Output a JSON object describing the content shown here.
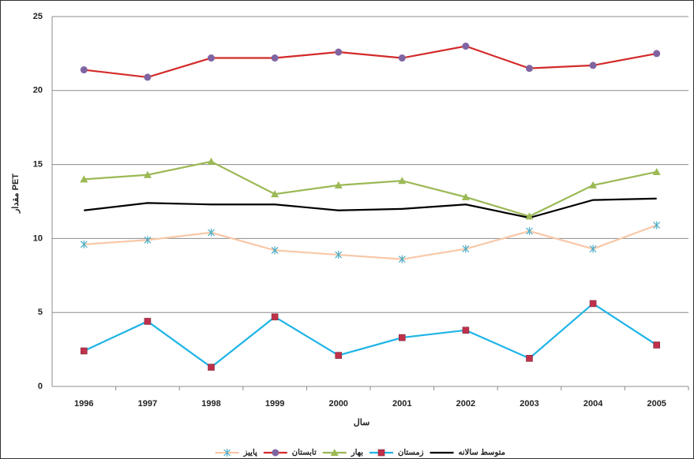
{
  "chart_data": {
    "type": "line",
    "ylabel": "مقدار PET",
    "xlabel": "سال",
    "categories": [
      "1996",
      "1997",
      "1998",
      "1999",
      "2000",
      "2001",
      "2002",
      "2003",
      "2004",
      "2005"
    ],
    "series": [
      {
        "name": "متوسط سالانه",
        "color": "#000000",
        "marker": "none",
        "marker_color": "#000000",
        "values": [
          11.9,
          12.4,
          12.3,
          12.3,
          11.9,
          12.0,
          12.3,
          11.4,
          12.6,
          12.7
        ]
      },
      {
        "name": "زمستان",
        "color": "#1eb4e6",
        "marker": "square",
        "marker_color": "#c0304a",
        "values": [
          2.4,
          4.4,
          1.3,
          4.7,
          2.1,
          3.3,
          3.8,
          1.9,
          5.6,
          2.8
        ]
      },
      {
        "name": "بهار",
        "color": "#9bb955",
        "marker": "triangle",
        "marker_color": "#9bb955",
        "values": [
          14.0,
          14.3,
          15.2,
          13.0,
          13.6,
          13.9,
          12.8,
          11.5,
          13.6,
          14.5
        ]
      },
      {
        "name": "تابستان",
        "color": "#d42a2a",
        "marker": "circle",
        "marker_color": "#8064a2",
        "values": [
          21.4,
          20.9,
          22.2,
          22.2,
          22.6,
          22.2,
          23.0,
          21.5,
          21.7,
          22.5
        ]
      },
      {
        "name": "پاییز",
        "color": "#f9c8a8",
        "marker": "star",
        "marker_color": "#4bacc6",
        "values": [
          9.6,
          9.9,
          10.4,
          9.2,
          8.9,
          8.6,
          9.3,
          10.5,
          9.3,
          10.9
        ]
      }
    ],
    "ylim": [
      0,
      25
    ],
    "yticks": [
      0,
      5,
      10,
      15,
      20,
      25
    ],
    "grid": true,
    "legend": "bottom"
  }
}
